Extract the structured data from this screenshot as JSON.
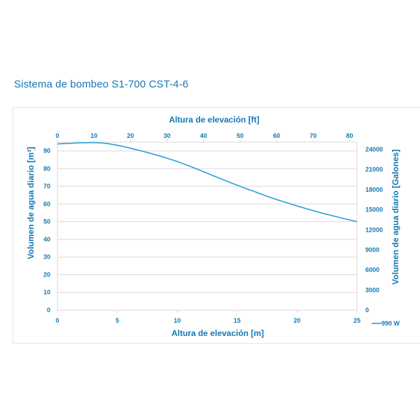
{
  "page": {
    "title": "Sistema de bombeo S1-700 CST-4-6"
  },
  "colors": {
    "primary": "#1478b4",
    "grid": "#d9d9d9",
    "line": "#2a9fd6"
  },
  "chart_data": {
    "type": "line",
    "title": "",
    "xlabel": "Altura de elevación [m]",
    "x2label": "Altura de elevación [ft]",
    "ylabel": "Volumen de agua diario [m³]",
    "y2label": "Volumen de agua diario  [Galones]",
    "xlim": [
      0,
      25
    ],
    "x2lim": [
      0,
      82
    ],
    "ylim": [
      0,
      95
    ],
    "y2lim": [
      0,
      25100
    ],
    "xticks": [
      0,
      5,
      10,
      15,
      20,
      25
    ],
    "x2ticks": [
      0,
      10,
      20,
      30,
      40,
      50,
      60,
      70,
      80
    ],
    "yticks": [
      0,
      10,
      20,
      30,
      40,
      50,
      60,
      70,
      80,
      90
    ],
    "y2ticks": [
      0,
      3000,
      6000,
      9000,
      12000,
      15000,
      18000,
      21000,
      24000
    ],
    "grid": true,
    "legend_position": "right-bottom",
    "series": [
      {
        "name": "990 W",
        "x": [
          0,
          1,
          2,
          3,
          4,
          5,
          6,
          7,
          8,
          9,
          10,
          11,
          12,
          13,
          14,
          15,
          16,
          17,
          18,
          19,
          20,
          21,
          22,
          23,
          24,
          25
        ],
        "y": [
          94,
          94.3,
          94.6,
          94.7,
          94.3,
          93.2,
          91.7,
          90,
          88.2,
          86.2,
          84,
          81.5,
          78.8,
          76,
          73.3,
          70.6,
          68.1,
          65.6,
          63.2,
          61,
          58.9,
          56.9,
          55,
          53.3,
          51.6,
          50
        ]
      }
    ]
  }
}
